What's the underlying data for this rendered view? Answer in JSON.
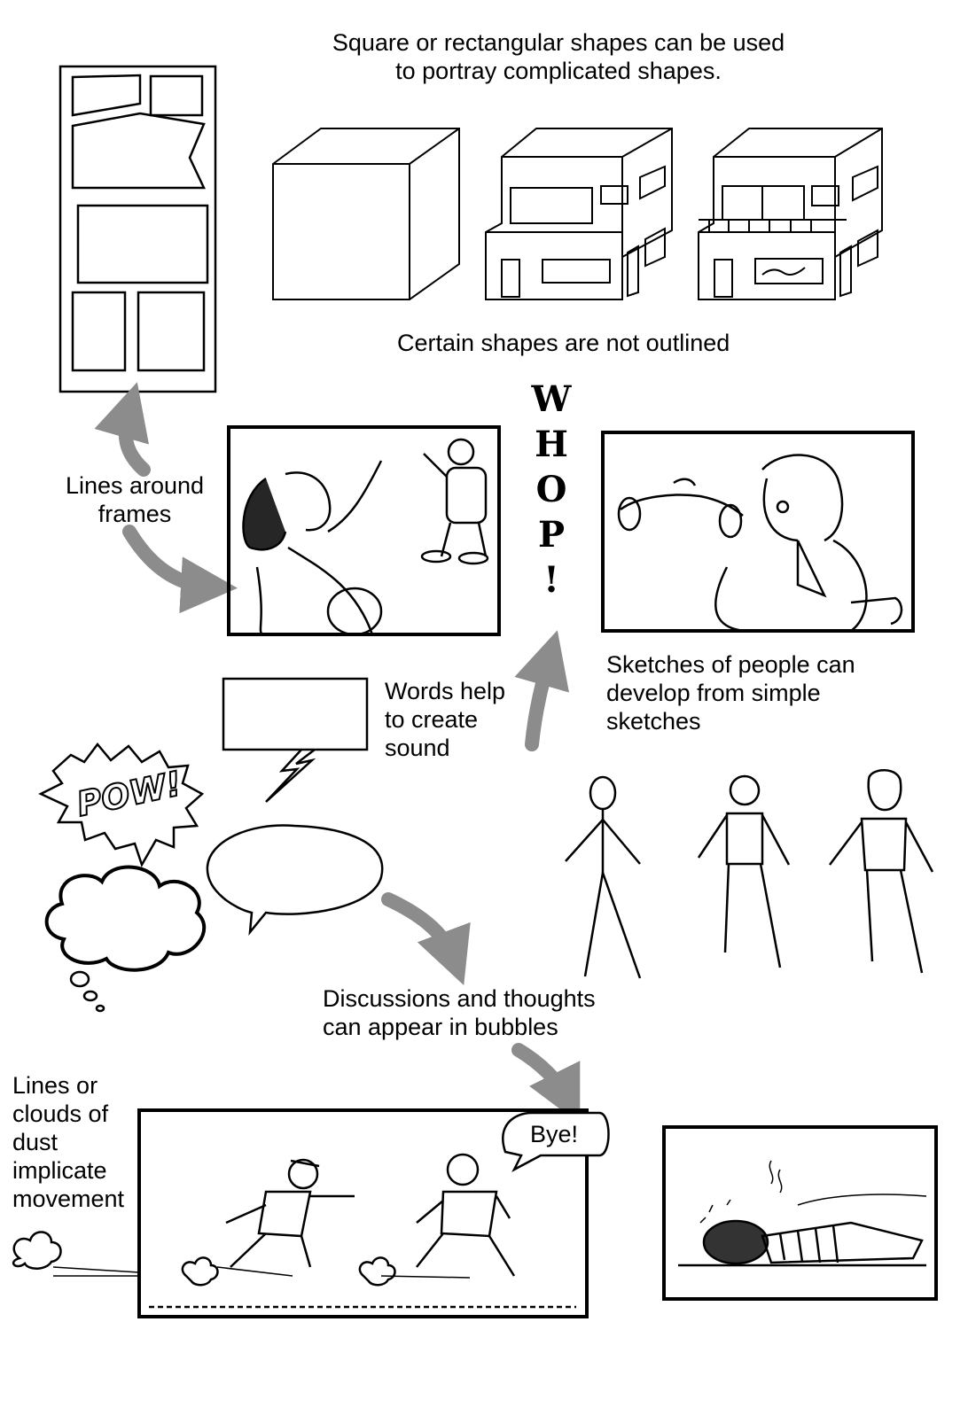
{
  "captions": {
    "shapes_title": "Square or rectangular shapes can be used\nto portray complicated shapes.",
    "not_outlined": "Certain shapes are not outlined",
    "lines_frames": "Lines around\nframes",
    "words_sound": "Words help\nto create\nsound",
    "sketches_people": "Sketches of people can\ndevelop from simple\nsketches",
    "bubbles": "Discussions and thoughts\ncan appear in bubbles",
    "movement": "Lines or\nclouds of\ndust\nimplicate\nmovement"
  },
  "sound_effect": {
    "whop_letters": [
      "W",
      "H",
      "O",
      "P",
      "!"
    ],
    "pow": "POW!"
  },
  "speech": {
    "bye": "Bye!"
  },
  "colors": {
    "ink": "#000000",
    "arrow": "#8c8c8c",
    "paper": "#ffffff"
  }
}
